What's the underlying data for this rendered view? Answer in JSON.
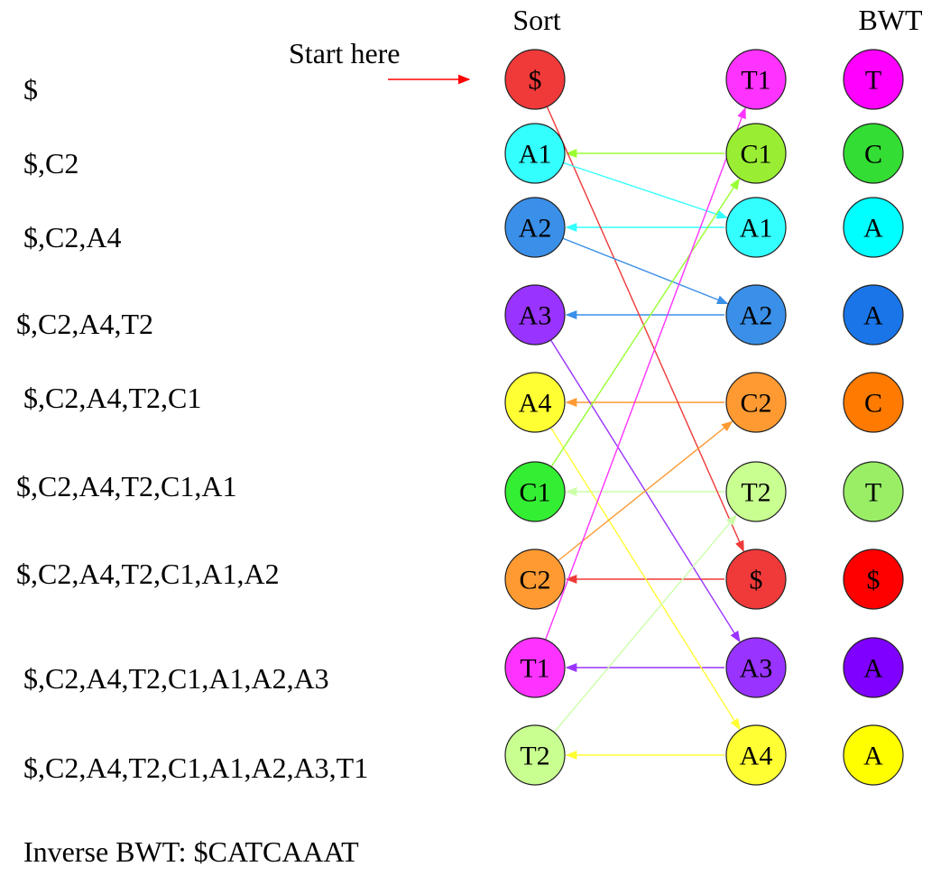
{
  "headers": {
    "sort": "Sort",
    "bwt": "BWT"
  },
  "start_label": "Start here",
  "start_color": "#ff0000",
  "progress_rows": [
    "$",
    "$,C2",
    "$,C2,A4",
    "$,C2,A4,T2",
    "$,C2,A4,T2,C1",
    "$,C2,A4,T2,C1,A1",
    "$,C2,A4,T2,C1,A1,A2",
    "$,C2,A4,T2,C1,A1,A2,A3",
    "$,C2,A4,T2,C1,A1,A2,A3,T1"
  ],
  "result_text": "Inverse BWT: $CATCAAAT",
  "sorted_column": [
    {
      "label": "$",
      "color": "#f03a3a"
    },
    {
      "label": "A1",
      "color": "#33ffff"
    },
    {
      "label": "A2",
      "color": "#3a8fe8"
    },
    {
      "label": "A3",
      "color": "#9933ff"
    },
    {
      "label": "A4",
      "color": "#ffff33"
    },
    {
      "label": "C1",
      "color": "#33ee33"
    },
    {
      "label": "C2",
      "color": "#ff9a33"
    },
    {
      "label": "T1",
      "color": "#ff33ff"
    },
    {
      "label": "T2",
      "color": "#c8ff90"
    }
  ],
  "last_column": [
    {
      "label": "T1",
      "color": "#ff33ff"
    },
    {
      "label": "C1",
      "color": "#99ee33"
    },
    {
      "label": "A1",
      "color": "#33ffff"
    },
    {
      "label": "A2",
      "color": "#3a8fe8"
    },
    {
      "label": "C2",
      "color": "#ff9a33"
    },
    {
      "label": "T2",
      "color": "#c8ff90"
    },
    {
      "label": "$",
      "color": "#f03a3a"
    },
    {
      "label": "A3",
      "color": "#9933ff"
    },
    {
      "label": "A4",
      "color": "#ffff33"
    }
  ],
  "bwt_column": [
    {
      "label": "T",
      "color": "#ff00ff"
    },
    {
      "label": "C",
      "color": "#33dd33"
    },
    {
      "label": "A",
      "color": "#00ffff"
    },
    {
      "label": "A",
      "color": "#1a75e8"
    },
    {
      "label": "C",
      "color": "#ff7a00"
    },
    {
      "label": "T",
      "color": "#99ee66"
    },
    {
      "label": "$",
      "color": "#ff0000"
    },
    {
      "label": "A",
      "color": "#7f00ff"
    },
    {
      "label": "A",
      "color": "#ffff00"
    }
  ],
  "row_links": [
    {
      "color": "#99ff33"
    },
    {
      "color": "#33ffff"
    },
    {
      "color": "#3a8fe8"
    },
    {
      "color": "#ff9a33"
    },
    {
      "color": "#ccffaa"
    },
    {
      "color": "#f03a3a"
    },
    {
      "color": "#9933ff"
    },
    {
      "color": "#ffff33"
    }
  ],
  "cross_links": [
    {
      "from": "$",
      "to": "$",
      "color": "#f03a3a"
    },
    {
      "from": "A1",
      "to": "A1",
      "color": "#33ffff"
    },
    {
      "from": "A2",
      "to": "A2",
      "color": "#3a8fe8"
    },
    {
      "from": "A3",
      "to": "A3",
      "color": "#9933ff"
    },
    {
      "from": "A4",
      "to": "A4",
      "color": "#ffff33"
    },
    {
      "from": "C1",
      "to": "C1",
      "color": "#99ff33"
    },
    {
      "from": "C2",
      "to": "C2",
      "color": "#ff9a33"
    },
    {
      "from": "T1",
      "to": "T1",
      "color": "#ff33ff"
    },
    {
      "from": "T2",
      "to": "T2",
      "color": "#ccffaa"
    }
  ]
}
